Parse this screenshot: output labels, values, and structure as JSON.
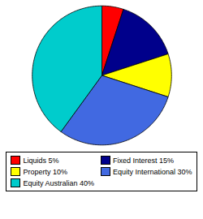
{
  "chart_data": {
    "type": "pie",
    "categories": [
      "Liquids 5%",
      "Fixed Interest 15%",
      "Property 10%",
      "Equity International 30%",
      "Equity Australian 40%"
    ],
    "values": [
      5,
      15,
      10,
      30,
      40
    ],
    "colors": [
      "#ff0000",
      "#00008b",
      "#ffff00",
      "#4169e1",
      "#00cccc"
    ],
    "legend": "bottom"
  }
}
